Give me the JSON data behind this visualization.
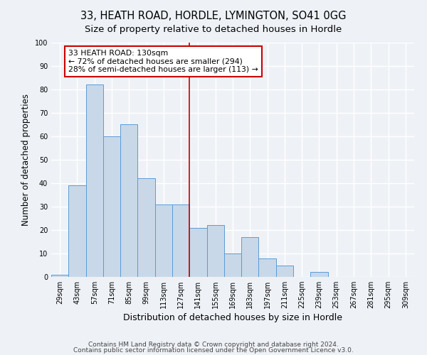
{
  "title": "33, HEATH ROAD, HORDLE, LYMINGTON, SO41 0GG",
  "subtitle": "Size of property relative to detached houses in Hordle",
  "xlabel": "Distribution of detached houses by size in Hordle",
  "ylabel": "Number of detached properties",
  "bin_labels": [
    "29sqm",
    "43sqm",
    "57sqm",
    "71sqm",
    "85sqm",
    "99sqm",
    "113sqm",
    "127sqm",
    "141sqm",
    "155sqm",
    "169sqm",
    "183sqm",
    "197sqm",
    "211sqm",
    "225sqm",
    "239sqm",
    "253sqm",
    "267sqm",
    "281sqm",
    "295sqm",
    "309sqm"
  ],
  "bar_values": [
    1,
    39,
    82,
    60,
    65,
    42,
    31,
    31,
    21,
    22,
    10,
    17,
    8,
    5,
    0,
    2,
    0,
    0,
    0,
    0,
    0
  ],
  "bar_color": "#c8d8e8",
  "bar_edge_color": "#5b9bd5",
  "vline_color": "#cc0000",
  "annotation_title": "33 HEATH ROAD: 130sqm",
  "annotation_line1": "← 72% of detached houses are smaller (294)",
  "annotation_line2": "28% of semi-detached houses are larger (113) →",
  "annotation_box_color": "#ffffff",
  "annotation_box_edge": "#cc0000",
  "ylim": [
    0,
    100
  ],
  "yticks": [
    0,
    10,
    20,
    30,
    40,
    50,
    60,
    70,
    80,
    90,
    100
  ],
  "footer1": "Contains HM Land Registry data © Crown copyright and database right 2024.",
  "footer2": "Contains public sector information licensed under the Open Government Licence v3.0.",
  "bg_color": "#eef2f7",
  "grid_color": "#ffffff",
  "title_fontsize": 10.5,
  "subtitle_fontsize": 9.5,
  "tick_fontsize": 7,
  "ylabel_fontsize": 8.5,
  "xlabel_fontsize": 9,
  "footer_fontsize": 6.5
}
